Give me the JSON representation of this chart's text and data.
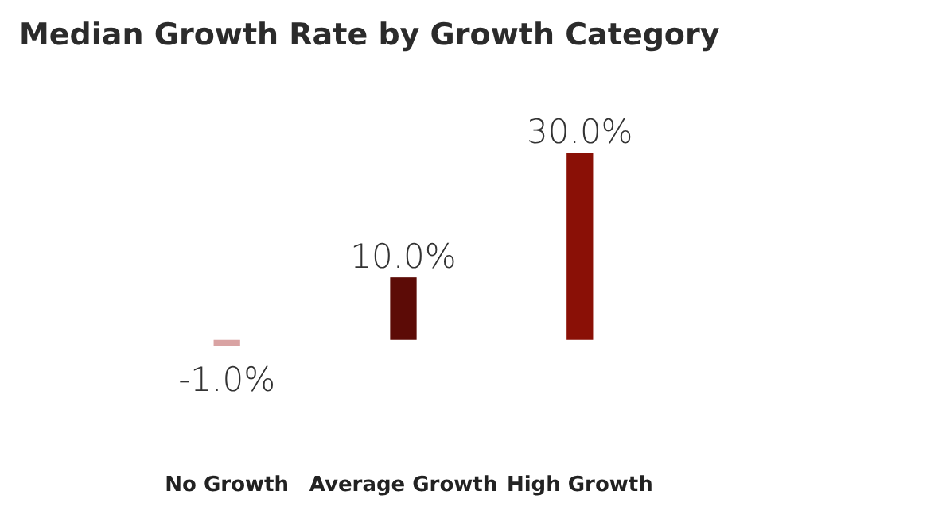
{
  "chart_data": {
    "type": "bar",
    "title": "Median Growth Rate by Growth Category",
    "categories": [
      "No Growth",
      "Average Growth",
      "High Growth"
    ],
    "values": [
      -1.0,
      10.0,
      30.0
    ],
    "value_labels": [
      "-1.0%",
      "10.0%",
      "30.0%"
    ],
    "colors": [
      "#d9a3a3",
      "#5c0b06",
      "#8a1006"
    ]
  }
}
